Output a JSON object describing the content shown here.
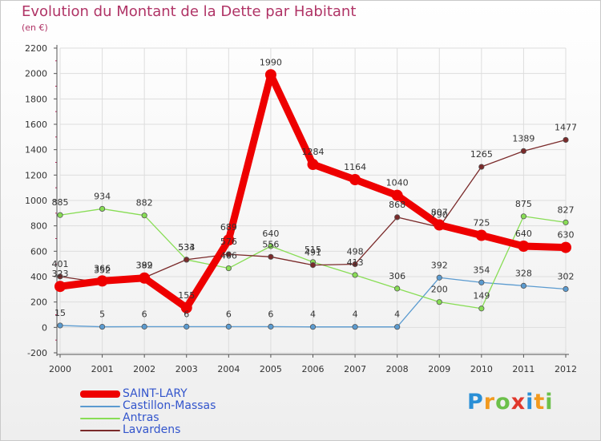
{
  "header": {
    "title": "Evolution du Montant de la Dette par Habitant",
    "subtitle": "(en €)"
  },
  "colors": {
    "axis": "#555555",
    "grid": "#dddddd",
    "tick_minor": "#c0205a",
    "label": "#333333"
  },
  "chart_data": {
    "type": "line",
    "title": "Evolution du Montant de la Dette par Habitant",
    "subtitle": "(en €)",
    "xlabel": "",
    "ylabel": "",
    "x": [
      "2000",
      "2001",
      "2002",
      "2003",
      "2004",
      "2005",
      "2006",
      "2007",
      "2008",
      "2009",
      "2010",
      "2011",
      "2012"
    ],
    "ylim": [
      -200,
      2200
    ],
    "yticks": [
      "-200",
      "0",
      "200",
      "400",
      "600",
      "800",
      "1000",
      "1200",
      "1400",
      "1600",
      "1800",
      "2000",
      "2200"
    ],
    "grid": true,
    "legend_position": "bottom-left",
    "series": [
      {
        "name": "SAINT-LARY",
        "color": "#ee0000",
        "values": [
          323,
          366,
          389,
          155,
          689,
          1990,
          1284,
          1164,
          1040,
          807,
          725,
          640,
          630
        ],
        "labels": [
          "323",
          "366",
          "389",
          "155",
          "689",
          "1990",
          "1284",
          "1164",
          "1040",
          "807",
          "725",
          "640",
          "630"
        ]
      },
      {
        "name": "Castillon-Massas",
        "color": "#5b9bd0",
        "values": [
          15,
          5,
          6,
          6,
          6,
          6,
          4,
          4,
          4,
          392,
          354,
          328,
          302
        ],
        "labels": [
          "15",
          "5",
          "6",
          "6",
          "6",
          "6",
          "4",
          "4",
          "4",
          "392",
          "354",
          "328",
          "302"
        ]
      },
      {
        "name": "Antras",
        "color": "#88dd55",
        "values": [
          885,
          934,
          882,
          533,
          466,
          640,
          515,
          413,
          306,
          200,
          149,
          875,
          827
        ],
        "labels": [
          "885",
          "934",
          "882",
          "533",
          "466",
          "640",
          "515",
          "413",
          "306",
          "200",
          "149",
          "875",
          "827"
        ]
      },
      {
        "name": "Lavardens",
        "color": "#7a2a2a",
        "values": [
          401,
          352,
          392,
          534,
          576,
          556,
          491,
          498,
          868,
          790,
          1265,
          1389,
          1477
        ],
        "labels": [
          "401",
          "352",
          "392",
          "534",
          "576",
          "556",
          "491",
          "498",
          "868",
          "790",
          "1265",
          "1389",
          "1477"
        ]
      }
    ]
  },
  "legend": {
    "items": [
      {
        "label": "SAINT-LARY",
        "color": "#ee0000"
      },
      {
        "label": "Castillon-Massas",
        "color": "#5b9bd0"
      },
      {
        "label": "Antras",
        "color": "#88dd55"
      },
      {
        "label": "Lavardens",
        "color": "#7a2a2a"
      }
    ]
  },
  "logo": {
    "letters": [
      "P",
      "r",
      "o",
      "x",
      "i",
      "t",
      "i"
    ],
    "colors": [
      "#2a8fd6",
      "#f29a1f",
      "#6cc04a",
      "#e0382c",
      "#2a8fd6",
      "#f29a1f",
      "#6cc04a"
    ]
  }
}
